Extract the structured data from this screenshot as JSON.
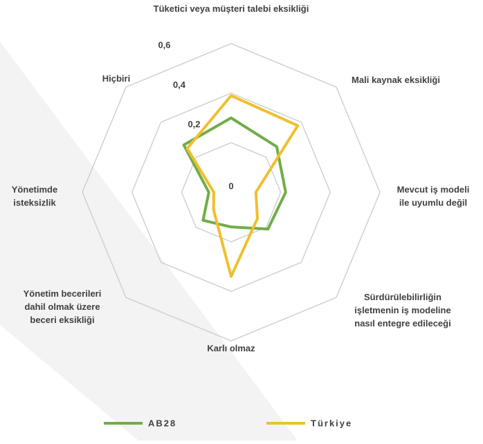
{
  "chart_data": {
    "type": "radar",
    "categories": [
      "Tüketici veya müşteri talebi eksikliği",
      "Mali kaynak eksikliği",
      "Mevcut iş modeli\nile uyumlu değil",
      "Sürdürülebilirliğin\nişletmenin iş modeline\nnasıl entegre edileceği",
      "Karlı olmaz",
      "Yönetim becerileri\ndahil olmak üzere\nbeceri eksikliği",
      "Yönetimde\nisteksizlik",
      "Hiçbiri"
    ],
    "series": [
      {
        "name": "AB28",
        "color": "#70ad47",
        "values": [
          0.3,
          0.26,
          0.22,
          0.21,
          0.14,
          0.16,
          0.09,
          0.27
        ]
      },
      {
        "name": "Türkiye",
        "color": "#f0bf2e",
        "values": [
          0.39,
          0.38,
          0.1,
          0.15,
          0.34,
          0.1,
          0.07,
          0.25
        ]
      }
    ],
    "ylim": [
      0,
      0.6
    ],
    "yticks": [
      0,
      {
        "value": 0.2,
        "label": "0,2"
      },
      {
        "value": 0.4,
        "label": "0,4"
      },
      {
        "value": 0.6,
        "label": "0,6"
      }
    ],
    "grid": true,
    "legend": "bottom"
  }
}
